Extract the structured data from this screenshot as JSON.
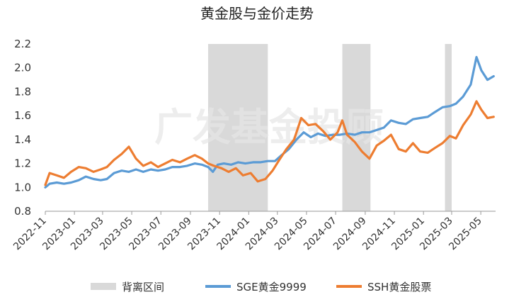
{
  "chart_data": {
    "type": "line",
    "title": "黄金股与金价走势",
    "watermark": "广发基金投顾",
    "xlabel": "",
    "ylabel": "",
    "ylim": [
      0.8,
      2.2
    ],
    "yticks": [
      "0.8",
      "1.0",
      "1.2",
      "1.4",
      "1.6",
      "1.8",
      "2.0",
      "2.2"
    ],
    "x_start": "2022-11",
    "x_end": "2025-06",
    "xtick_labels": [
      "2022-11",
      "2023-01",
      "2023-03",
      "2023-05",
      "2023-07",
      "2023-09",
      "2023-11",
      "2024-01",
      "2024-03",
      "2024-05",
      "2024-07",
      "2024-09",
      "2024-11",
      "2025-01",
      "2025-03",
      "2025-05"
    ],
    "grid": false,
    "legend_position": "bottom",
    "shaded_periods": {
      "name": "背离区间",
      "color": "#d9d9d9",
      "ranges": [
        [
          "2023-10-08",
          "2024-02-10"
        ],
        [
          "2024-07-15",
          "2024-09-12"
        ],
        [
          "2025-02-15",
          "2025-03-01"
        ]
      ]
    },
    "series": [
      {
        "name": "SGE黄金9999",
        "color": "#5b9bd5",
        "points": [
          [
            "2022-11-01",
            1.0
          ],
          [
            "2022-11-10",
            1.03
          ],
          [
            "2022-11-25",
            1.04
          ],
          [
            "2022-12-10",
            1.03
          ],
          [
            "2022-12-25",
            1.04
          ],
          [
            "2023-01-10",
            1.06
          ],
          [
            "2023-01-25",
            1.09
          ],
          [
            "2023-02-10",
            1.07
          ],
          [
            "2023-02-25",
            1.06
          ],
          [
            "2023-03-10",
            1.07
          ],
          [
            "2023-03-25",
            1.12
          ],
          [
            "2023-04-10",
            1.14
          ],
          [
            "2023-04-25",
            1.13
          ],
          [
            "2023-05-10",
            1.15
          ],
          [
            "2023-05-25",
            1.13
          ],
          [
            "2023-06-10",
            1.15
          ],
          [
            "2023-06-25",
            1.14
          ],
          [
            "2023-07-10",
            1.15
          ],
          [
            "2023-07-25",
            1.17
          ],
          [
            "2023-08-10",
            1.17
          ],
          [
            "2023-08-25",
            1.18
          ],
          [
            "2023-09-10",
            1.2
          ],
          [
            "2023-09-25",
            1.19
          ],
          [
            "2023-10-08",
            1.17
          ],
          [
            "2023-10-18",
            1.13
          ],
          [
            "2023-10-28",
            1.19
          ],
          [
            "2023-11-10",
            1.2
          ],
          [
            "2023-11-25",
            1.19
          ],
          [
            "2023-12-10",
            1.21
          ],
          [
            "2023-12-25",
            1.2
          ],
          [
            "2024-01-10",
            1.21
          ],
          [
            "2024-01-25",
            1.21
          ],
          [
            "2024-02-10",
            1.22
          ],
          [
            "2024-02-25",
            1.22
          ],
          [
            "2024-03-10",
            1.27
          ],
          [
            "2024-03-25",
            1.32
          ],
          [
            "2024-04-10",
            1.4
          ],
          [
            "2024-04-25",
            1.46
          ],
          [
            "2024-05-10",
            1.42
          ],
          [
            "2024-05-25",
            1.45
          ],
          [
            "2024-06-10",
            1.43
          ],
          [
            "2024-06-25",
            1.44
          ],
          [
            "2024-07-10",
            1.44
          ],
          [
            "2024-07-25",
            1.45
          ],
          [
            "2024-08-10",
            1.44
          ],
          [
            "2024-08-25",
            1.46
          ],
          [
            "2024-09-10",
            1.46
          ],
          [
            "2024-09-25",
            1.48
          ],
          [
            "2024-10-10",
            1.5
          ],
          [
            "2024-10-25",
            1.56
          ],
          [
            "2024-11-10",
            1.54
          ],
          [
            "2024-11-25",
            1.53
          ],
          [
            "2024-12-10",
            1.57
          ],
          [
            "2024-12-25",
            1.58
          ],
          [
            "2025-01-10",
            1.59
          ],
          [
            "2025-01-25",
            1.63
          ],
          [
            "2025-02-10",
            1.67
          ],
          [
            "2025-02-25",
            1.68
          ],
          [
            "2025-03-10",
            1.7
          ],
          [
            "2025-03-25",
            1.76
          ],
          [
            "2025-04-10",
            1.86
          ],
          [
            "2025-04-22",
            2.09
          ],
          [
            "2025-05-02",
            1.98
          ],
          [
            "2025-05-15",
            1.9
          ],
          [
            "2025-05-28",
            1.93
          ]
        ]
      },
      {
        "name": "SSH黄金股票",
        "color": "#ed7d31",
        "points": [
          [
            "2022-11-01",
            1.02
          ],
          [
            "2022-11-10",
            1.12
          ],
          [
            "2022-11-25",
            1.1
          ],
          [
            "2022-12-10",
            1.08
          ],
          [
            "2022-12-25",
            1.13
          ],
          [
            "2023-01-10",
            1.17
          ],
          [
            "2023-01-25",
            1.16
          ],
          [
            "2023-02-10",
            1.13
          ],
          [
            "2023-02-25",
            1.15
          ],
          [
            "2023-03-10",
            1.17
          ],
          [
            "2023-03-25",
            1.23
          ],
          [
            "2023-04-10",
            1.28
          ],
          [
            "2023-04-25",
            1.34
          ],
          [
            "2023-05-10",
            1.24
          ],
          [
            "2023-05-25",
            1.18
          ],
          [
            "2023-06-10",
            1.21
          ],
          [
            "2023-06-25",
            1.17
          ],
          [
            "2023-07-10",
            1.2
          ],
          [
            "2023-07-25",
            1.23
          ],
          [
            "2023-08-10",
            1.21
          ],
          [
            "2023-08-25",
            1.24
          ],
          [
            "2023-09-10",
            1.27
          ],
          [
            "2023-09-25",
            1.24
          ],
          [
            "2023-10-08",
            1.2
          ],
          [
            "2023-10-20",
            1.18
          ],
          [
            "2023-11-05",
            1.16
          ],
          [
            "2023-11-20",
            1.13
          ],
          [
            "2023-12-05",
            1.16
          ],
          [
            "2023-12-20",
            1.1
          ],
          [
            "2024-01-05",
            1.12
          ],
          [
            "2024-01-20",
            1.05
          ],
          [
            "2024-02-05",
            1.07
          ],
          [
            "2024-02-20",
            1.14
          ],
          [
            "2024-03-05",
            1.23
          ],
          [
            "2024-03-20",
            1.32
          ],
          [
            "2024-04-05",
            1.4
          ],
          [
            "2024-04-20",
            1.58
          ],
          [
            "2024-05-05",
            1.52
          ],
          [
            "2024-05-20",
            1.53
          ],
          [
            "2024-06-05",
            1.47
          ],
          [
            "2024-06-20",
            1.4
          ],
          [
            "2024-07-05",
            1.46
          ],
          [
            "2024-07-15",
            1.56
          ],
          [
            "2024-07-25",
            1.44
          ],
          [
            "2024-08-10",
            1.38
          ],
          [
            "2024-08-25",
            1.3
          ],
          [
            "2024-09-10",
            1.24
          ],
          [
            "2024-09-25",
            1.35
          ],
          [
            "2024-10-10",
            1.39
          ],
          [
            "2024-10-25",
            1.44
          ],
          [
            "2024-11-10",
            1.32
          ],
          [
            "2024-11-25",
            1.3
          ],
          [
            "2024-12-10",
            1.37
          ],
          [
            "2024-12-25",
            1.3
          ],
          [
            "2025-01-10",
            1.29
          ],
          [
            "2025-01-25",
            1.33
          ],
          [
            "2025-02-10",
            1.37
          ],
          [
            "2025-02-25",
            1.43
          ],
          [
            "2025-03-10",
            1.41
          ],
          [
            "2025-03-25",
            1.52
          ],
          [
            "2025-04-10",
            1.61
          ],
          [
            "2025-04-22",
            1.72
          ],
          [
            "2025-05-02",
            1.65
          ],
          [
            "2025-05-15",
            1.58
          ],
          [
            "2025-05-28",
            1.59
          ]
        ]
      }
    ]
  }
}
